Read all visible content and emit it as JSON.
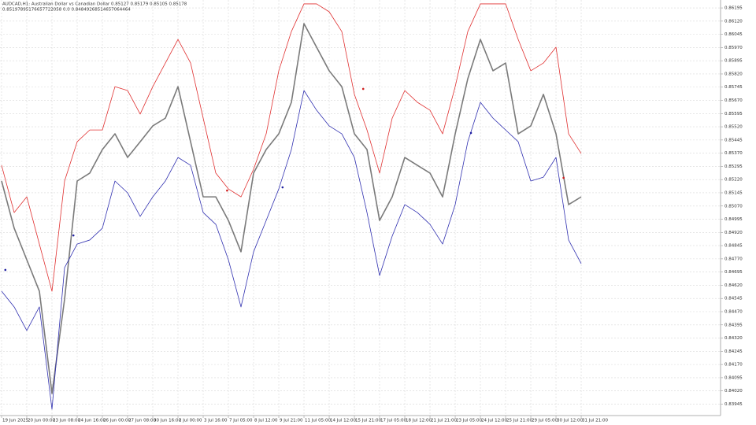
{
  "chart_data": {
    "type": "line",
    "title": "AUDCAD,H1:  Australian Dollar vs Canadian Dollar  0.85127 0.85179 0.85105 0.85178",
    "subtitle": "0.85197895176657722058 0.0 0.84849268514657064464",
    "xlim": [
      -0.125,
      57.06
    ],
    "ylim": [
      0.8388,
      0.8624
    ],
    "grid": true,
    "xticks": [
      {
        "value": 0,
        "label": "19 Jun 2025"
      },
      {
        "value": 2,
        "label": "20 Jun 00:00"
      },
      {
        "value": 4,
        "label": "23 Jun 08:00"
      },
      {
        "value": 6,
        "label": "24 Jun 16:00"
      },
      {
        "value": 8,
        "label": "26 Jun 00:00"
      },
      {
        "value": 10,
        "label": "27 Jun 08:00"
      },
      {
        "value": 12,
        "label": "30 Jun 16:00"
      },
      {
        "value": 14,
        "label": "2 Jul 00:00"
      },
      {
        "value": 16,
        "label": "3 Jul 16:00"
      },
      {
        "value": 18,
        "label": "7 Jul 05:00"
      },
      {
        "value": 20,
        "label": "8 Jul 12:00"
      },
      {
        "value": 22,
        "label": "9 Jul 21:00"
      },
      {
        "value": 24,
        "label": "11 Jul 05:00"
      },
      {
        "value": 26,
        "label": "14 Jul 12:00"
      },
      {
        "value": 28,
        "label": "15 Jul 21:00"
      },
      {
        "value": 30,
        "label": "17 Jul 05:00"
      },
      {
        "value": 32,
        "label": "18 Jul 12:00"
      },
      {
        "value": 34,
        "label": "21 Jul 21:00"
      },
      {
        "value": 36,
        "label": "23 Jul 05:00"
      },
      {
        "value": 38,
        "label": "24 Jul 12:00"
      },
      {
        "value": 40,
        "label": "25 Jul 21:00"
      },
      {
        "value": 42,
        "label": "29 Jul 05:00"
      },
      {
        "value": 44,
        "label": "30 Jul 12:00"
      },
      {
        "value": 46,
        "label": "31 Jul 21:00"
      }
    ],
    "yticks": [
      0.86195,
      {
        "value": 0.8612,
        "label": "0.86120"
      },
      0.86045,
      {
        "value": 0.8597,
        "label": "0.85970"
      },
      0.85895,
      {
        "value": 0.8582,
        "label": "0.85820"
      },
      0.85745,
      {
        "value": 0.8567,
        "label": "0.85670"
      },
      0.85595,
      {
        "value": 0.8552,
        "label": "0.85520"
      },
      0.85445,
      {
        "value": 0.8537,
        "label": "0.85370"
      },
      0.85295,
      {
        "value": 0.8522,
        "label": "0.85220"
      },
      0.85145,
      {
        "value": 0.8507,
        "label": "0.85070"
      },
      0.84995,
      {
        "value": 0.8492,
        "label": "0.84920"
      },
      0.84845,
      {
        "value": 0.8477,
        "label": "0.84770"
      },
      0.84695,
      {
        "value": 0.8462,
        "label": "0.84620"
      },
      0.84545,
      {
        "value": 0.8447,
        "label": "0.84470"
      },
      0.84395,
      {
        "value": 0.8432,
        "label": "0.84320"
      },
      0.84245,
      {
        "value": 0.8417,
        "label": "0.84170"
      },
      0.84095,
      {
        "value": 0.8402,
        "label": "0.84020"
      },
      0.83945
    ],
    "series": [
      {
        "color": "#7a7a7a",
        "values": [
          0.85212,
          0.84944,
          0.84765,
          0.84586,
          0.84005,
          0.84541,
          0.85212,
          0.85257,
          0.85391,
          0.8548,
          0.85346,
          0.85435,
          0.85525,
          0.85569,
          0.85748,
          0.85435,
          0.85122,
          0.85122,
          0.84988,
          0.8481,
          0.85257,
          0.85391,
          0.8548,
          0.85659,
          0.86106,
          0.85972,
          0.85838,
          0.85748,
          0.8548,
          0.85391,
          0.84988,
          0.85122,
          0.85346,
          0.85301,
          0.85257,
          0.85122,
          0.8548,
          0.85793,
          0.86016,
          0.85838,
          0.85882,
          0.8548,
          0.85525,
          0.85704,
          0.8548,
          0.85078,
          0.85122
        ]
      },
      {
        "color": "#e03030",
        "values": [
          0.85301,
          0.85033,
          0.85122,
          0.84854,
          0.84586,
          0.85212,
          0.85435,
          0.85502,
          0.85502,
          0.85748,
          0.85726,
          0.85592,
          0.85748,
          0.85882,
          0.86016,
          0.85882,
          0.85569,
          0.85257,
          0.85167,
          0.85122,
          0.85279,
          0.8548,
          0.85838,
          0.86061,
          0.86218,
          0.86218,
          0.86173,
          0.86061,
          0.85704,
          0.85502,
          0.85257,
          0.85569,
          0.85726,
          0.85659,
          0.85614,
          0.8548,
          0.85748,
          0.86061,
          0.86218,
          0.86218,
          0.86218,
          0.86016,
          0.85838,
          0.85882,
          0.85972,
          0.8548,
          0.85368
        ]
      },
      {
        "color": "#3030b0",
        "values": [
          0.84586,
          0.84497,
          0.84363,
          0.84497,
          0.83916,
          0.8472,
          0.84854,
          0.84877,
          0.84944,
          0.85212,
          0.85145,
          0.85011,
          0.85122,
          0.85212,
          0.85346,
          0.85301,
          0.85033,
          0.84966,
          0.84765,
          0.84497,
          0.8481,
          0.84988,
          0.85167,
          0.85391,
          0.85726,
          0.85614,
          0.85525,
          0.8548,
          0.85346,
          0.85033,
          0.84675,
          0.84899,
          0.85078,
          0.85033,
          0.84966,
          0.84854,
          0.85078,
          0.85435,
          0.85659,
          0.85569,
          0.85502,
          0.85435,
          0.85212,
          0.85234,
          0.85346,
          0.84877,
          0.84743
        ]
      }
    ],
    "points": [
      {
        "color": "#2020a0",
        "x": [
          0.3,
          5.7,
          22.3,
          37.25
        ],
        "values": [
          0.84707,
          0.84903,
          0.85176,
          0.85485
        ]
      },
      {
        "color": "#d02020",
        "x": [
          17.9,
          28.7,
          44.6
        ],
        "values": [
          0.85158,
          0.85735,
          0.8523
        ]
      }
    ]
  }
}
